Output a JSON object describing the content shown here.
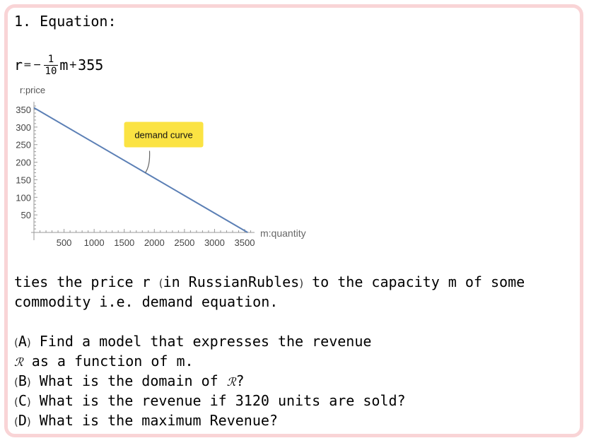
{
  "problem": {
    "heading": "1. Equation:",
    "equation": {
      "lhs": "r",
      "eq": "=",
      "minus": "−",
      "num": "1",
      "den": "10",
      "var": "m",
      "plus": "+",
      "const": "355"
    },
    "desc_line1_a": "ties the price r ",
    "desc_line1_paren_open": "(",
    "desc_line1_b": "in RussianRubles",
    "desc_line1_paren_close": ")",
    "desc_line1_c": " to the capacity m of some",
    "desc_line2": "commodity i.e. demand equation.",
    "qa_label": "A",
    "qa_text_1": " Find a model that expresses the revenue",
    "qa_symbol": "ℛ",
    "qa_text_2": " as a function of m.",
    "qb_label": "B",
    "qb_text": " What is the domain of ",
    "qb_symbol": "ℛ",
    "qb_end": "?",
    "qc_label": "C",
    "qc_text": " What is the revenue if 3120 units are sold?",
    "qd_label": "D",
    "qd_text": " What is the maximum Revenue?"
  },
  "chart_data": {
    "type": "line",
    "ylabel": "r:price",
    "xlabel": "m:quantity",
    "xlim": [
      0,
      3600
    ],
    "ylim": [
      0,
      365
    ],
    "xticks": [
      500,
      1000,
      1500,
      2000,
      2500,
      3000,
      3500
    ],
    "yticks": [
      50,
      100,
      150,
      200,
      250,
      300,
      350
    ],
    "series": [
      {
        "x": [
          0,
          3550
        ],
        "y": [
          355,
          0
        ],
        "color": "#5b7fb5"
      }
    ],
    "annotation": {
      "text": "demand curve",
      "x": 1850,
      "y": 170,
      "bg": "#fbe343"
    }
  }
}
